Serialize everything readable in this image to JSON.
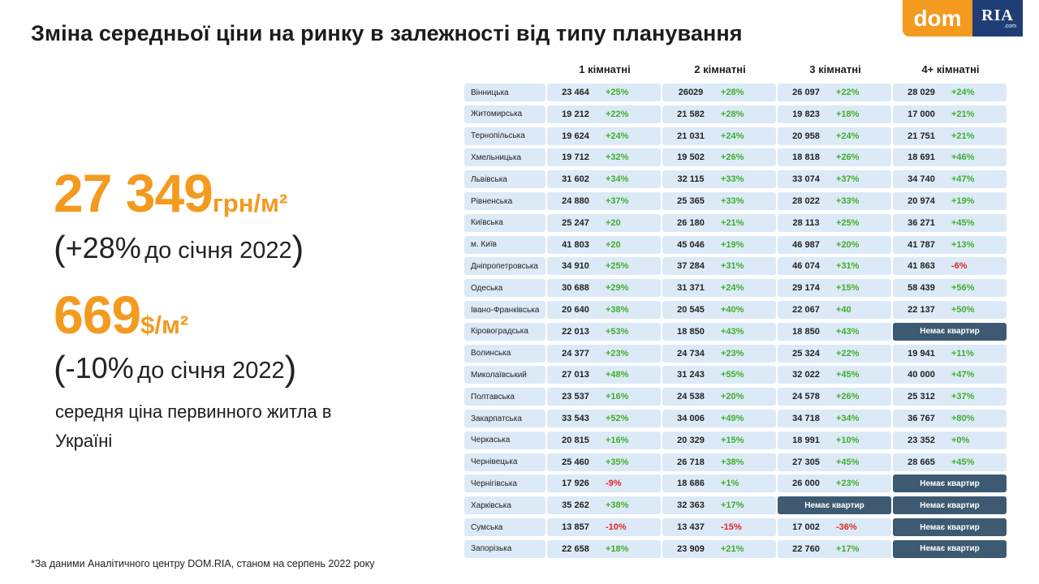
{
  "title": "Зміна середньої ціни на ринку в залежності від типу планування",
  "logo": {
    "dom": "dom",
    "ria": "RIA",
    "ria_sub": ".com"
  },
  "summary": {
    "uah_value": "27 349",
    "uah_unit": "грн/м²",
    "uah_change_pct": "+28%",
    "uah_change_text": "до січня 2022",
    "usd_value": "669",
    "usd_unit": "$/м²",
    "usd_change_pct": "-10%",
    "usd_change_text": "до січня 2022",
    "description": "середня ціна первинного житла в Україні"
  },
  "footnote": "*За даними Аналітичного центру DOM.RIA, станом на серпень 2022 року",
  "table": {
    "columns": [
      "1 кімнатні",
      "2 кімнатні",
      "3 кімнатні",
      "4+ кімнатні"
    ],
    "no_apartments_label": "Немає квартир",
    "rows": [
      {
        "region": "Вінницька",
        "cells": [
          [
            "23 464",
            "+25%"
          ],
          [
            "26029",
            "+28%"
          ],
          [
            "26 097",
            "+22%"
          ],
          [
            "28 029",
            "+24%"
          ]
        ]
      },
      {
        "region": "Житомирська",
        "cells": [
          [
            "19 212",
            "+22%"
          ],
          [
            "21 582",
            "+28%"
          ],
          [
            "19 823",
            "+18%"
          ],
          [
            "17 000",
            "+21%"
          ]
        ]
      },
      {
        "region": "Тернопільська",
        "cells": [
          [
            "19  624",
            "+24%"
          ],
          [
            "21 031",
            "+24%"
          ],
          [
            "20 958",
            "+24%"
          ],
          [
            "21 751",
            "+21%"
          ]
        ]
      },
      {
        "region": "Хмельницька",
        "cells": [
          [
            "19 712",
            "+32%"
          ],
          [
            "19 502",
            "+26%"
          ],
          [
            "18 818",
            "+26%"
          ],
          [
            "18 691",
            "+46%"
          ]
        ]
      },
      {
        "region": "Львівська",
        "cells": [
          [
            "31 602",
            "+34%"
          ],
          [
            "32 115",
            "+33%"
          ],
          [
            "33 074",
            "+37%"
          ],
          [
            "34 740",
            "+47%"
          ]
        ]
      },
      {
        "region": "Рівненська",
        "cells": [
          [
            "24 880",
            "+37%"
          ],
          [
            "25 365",
            "+33%"
          ],
          [
            "28 022",
            "+33%"
          ],
          [
            "20 974",
            "+19%"
          ]
        ]
      },
      {
        "region": "Київська",
        "cells": [
          [
            "25 247",
            "+20"
          ],
          [
            "26 180",
            "+21%"
          ],
          [
            "28 113",
            "+25%"
          ],
          [
            "36 271",
            "+45%"
          ]
        ]
      },
      {
        "region": "м. Київ",
        "cells": [
          [
            "41 803",
            "+20"
          ],
          [
            "45 046",
            "+19%"
          ],
          [
            "46 987",
            "+20%"
          ],
          [
            "41 787",
            "+13%"
          ]
        ]
      },
      {
        "region": "Дніпропетровська",
        "cells": [
          [
            "34 910",
            "+25%"
          ],
          [
            "37 284",
            "+31%"
          ],
          [
            "46 074",
            "+31%"
          ],
          [
            "41 863",
            "-6%"
          ]
        ]
      },
      {
        "region": "Одеська",
        "cells": [
          [
            "30 688",
            "+29%"
          ],
          [
            "31 371",
            "+24%"
          ],
          [
            "29 174",
            "+15%"
          ],
          [
            "58 439",
            "+56%"
          ]
        ]
      },
      {
        "region": "Івано-Франківська",
        "cells": [
          [
            "20 640",
            "+38%"
          ],
          [
            "20 545",
            "+40%"
          ],
          [
            "22 067",
            "+40"
          ],
          [
            "22 137",
            "+50%"
          ]
        ]
      },
      {
        "region": "Кіровоградська",
        "cells": [
          [
            "22 013",
            "+53%"
          ],
          [
            "18 850",
            "+43%"
          ],
          [
            "18 850",
            "+43%"
          ],
          null
        ]
      },
      {
        "region": "Волинська",
        "cells": [
          [
            "24 377",
            "+23%"
          ],
          [
            "24 734",
            "+23%"
          ],
          [
            "25 324",
            "+22%"
          ],
          [
            "19 941",
            "+11%"
          ]
        ]
      },
      {
        "region": "Миколаївський",
        "cells": [
          [
            "27 013",
            "+48%"
          ],
          [
            "31 243",
            "+55%"
          ],
          [
            "32 022",
            "+45%"
          ],
          [
            "40 000",
            "+47%"
          ]
        ]
      },
      {
        "region": "Полтавська",
        "cells": [
          [
            "23 537",
            "+16%"
          ],
          [
            "24 538",
            "+20%"
          ],
          [
            "24 578",
            "+26%"
          ],
          [
            "25 312",
            "+37%"
          ]
        ]
      },
      {
        "region": "Закарпатська",
        "cells": [
          [
            "33 543",
            "+52%"
          ],
          [
            "34 006",
            "+49%"
          ],
          [
            "34 718",
            "+34%"
          ],
          [
            "36 767",
            "+80%"
          ]
        ]
      },
      {
        "region": "Черкаська",
        "cells": [
          [
            "20 815",
            "+16%"
          ],
          [
            "20 329",
            "+15%"
          ],
          [
            "18 991",
            "+10%"
          ],
          [
            "23 352",
            "+0%"
          ]
        ]
      },
      {
        "region": "Чернівецька",
        "cells": [
          [
            "25 460",
            "+35%"
          ],
          [
            "26 718",
            "+38%"
          ],
          [
            "27 305",
            "+45%"
          ],
          [
            "28 665",
            "+45%"
          ]
        ]
      },
      {
        "region": "Чернігівська",
        "cells": [
          [
            "17 926",
            "-9%"
          ],
          [
            "18 686",
            "+1%"
          ],
          [
            "26 000",
            "+23%"
          ],
          null
        ]
      },
      {
        "region": "Харківська",
        "cells": [
          [
            "35 262",
            "+38%"
          ],
          [
            "32 363",
            "+17%"
          ],
          null,
          null
        ]
      },
      {
        "region": "Сумська",
        "cells": [
          [
            "13 857",
            "-10%"
          ],
          [
            "13 437",
            "-15%"
          ],
          [
            "17 002",
            "-36%"
          ],
          null
        ]
      },
      {
        "region": "Запорізька",
        "cells": [
          [
            "22 658",
            "+18%"
          ],
          [
            "23 909",
            "+21%"
          ],
          [
            "22 760",
            "+17%"
          ],
          null
        ]
      }
    ]
  }
}
